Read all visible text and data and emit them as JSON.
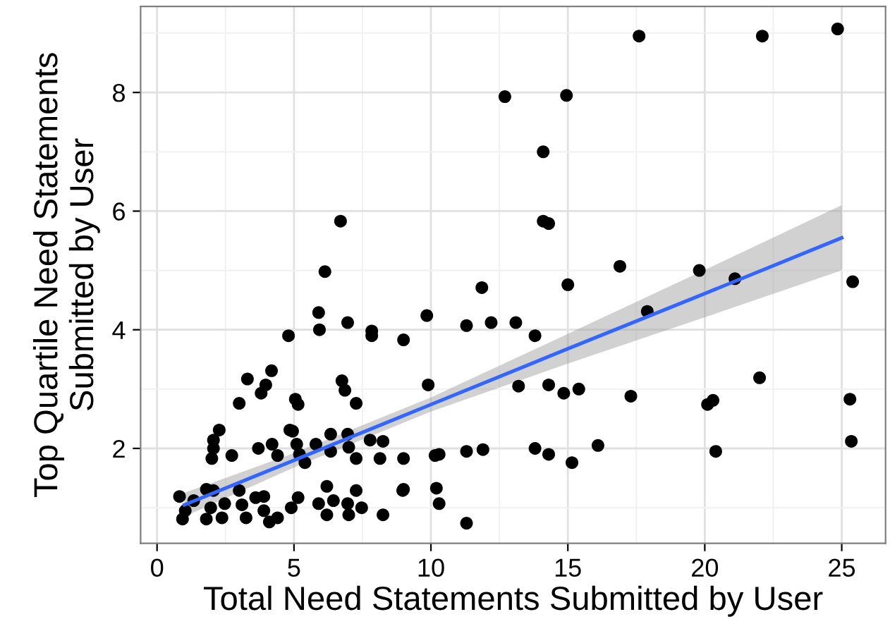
{
  "chart_data": {
    "type": "scatter",
    "xlabel": "Total Need Statements Submitted by User",
    "ylabel": "Top Quartile Need Statements\nSubmitted by User",
    "xlim": [
      -0.6,
      26.6
    ],
    "ylim": [
      0.4,
      9.45
    ],
    "xticks": [
      0,
      5,
      10,
      15,
      20,
      25
    ],
    "yticks": [
      2,
      4,
      6,
      8
    ],
    "grid": true,
    "series": [
      {
        "color": "#000000",
        "marker": "circle",
        "x": [
          6.7,
          12.7,
          14.95,
          14.1,
          14.1,
          17.6,
          22.1,
          24.85,
          14.3,
          16.9,
          19.8,
          21.1,
          25.4,
          17.9,
          11.86,
          15.0,
          9.85,
          9.0,
          11.3,
          12.2,
          13.1,
          13.8,
          9.9,
          13.2,
          14.3,
          14.85,
          15.4,
          17.3,
          22.0,
          20.1,
          20.3,
          25.3,
          25.35,
          9.0,
          10.15,
          10.3,
          11.3,
          11.9,
          13.8,
          14.3,
          15.15,
          16.1,
          20.4,
          8.97,
          10.2,
          10.3,
          11.3,
          6.13,
          5.9,
          5.93,
          4.8,
          6.96,
          7.84,
          7.84,
          4.18,
          3.3,
          3.97,
          3.8,
          6.75,
          6.86,
          3.0,
          5.05,
          5.15,
          7.27,
          2.27,
          2.06,
          2.06,
          2.0,
          2.73,
          3.7,
          4.2,
          4.4,
          4.85,
          4.95,
          5.1,
          5.2,
          5.4,
          5.8,
          6.34,
          6.34,
          6.96,
          7.0,
          7.27,
          7.78,
          8.25,
          8.14,
          0.82,
          1.03,
          0.93,
          1.34,
          1.8,
          2.06,
          1.96,
          1.8,
          2.47,
          2.37,
          3.0,
          3.1,
          3.25,
          3.6,
          3.9,
          3.9,
          4.1,
          4.4,
          4.9,
          5.15,
          5.9,
          6.2,
          6.2,
          6.44,
          6.96,
          7.0,
          7.27,
          7.47,
          8.25,
          9.0
        ],
        "values": [
          5.83,
          7.93,
          7.95,
          7.0,
          5.83,
          8.95,
          8.95,
          9.07,
          5.79,
          5.07,
          5.0,
          4.86,
          4.81,
          4.31,
          4.71,
          4.76,
          4.24,
          3.83,
          4.07,
          4.12,
          4.12,
          3.9,
          3.07,
          3.05,
          3.07,
          2.93,
          3.0,
          2.88,
          3.19,
          2.74,
          2.81,
          2.83,
          2.12,
          1.83,
          1.88,
          1.9,
          1.95,
          1.98,
          2.0,
          1.9,
          1.76,
          2.05,
          1.95,
          1.29,
          1.33,
          1.07,
          0.74,
          4.98,
          4.29,
          4.0,
          3.9,
          4.12,
          3.98,
          3.9,
          3.31,
          3.17,
          3.07,
          2.93,
          3.14,
          2.98,
          2.76,
          2.83,
          2.74,
          2.76,
          2.31,
          2.14,
          2.0,
          1.83,
          1.88,
          2.0,
          2.07,
          1.88,
          2.31,
          2.29,
          2.07,
          1.9,
          1.76,
          2.07,
          2.24,
          1.95,
          2.24,
          2.02,
          1.83,
          2.14,
          2.12,
          1.83,
          1.19,
          0.95,
          0.81,
          1.12,
          1.31,
          1.29,
          1.0,
          0.81,
          1.07,
          0.83,
          1.29,
          1.05,
          0.83,
          1.17,
          1.19,
          0.95,
          0.76,
          0.83,
          1.0,
          1.17,
          1.07,
          1.36,
          0.88,
          1.12,
          1.07,
          0.88,
          1.29,
          1.0,
          0.88,
          1.31
        ]
      },
      {
        "type": "line",
        "color": "#3366ff",
        "x": [
          1,
          5,
          10,
          15,
          20,
          25
        ],
        "values": [
          1.05,
          1.8,
          2.74,
          3.68,
          4.61,
          5.55
        ],
        "lower": [
          0.85,
          1.68,
          2.62,
          3.43,
          4.21,
          5.0
        ],
        "upper": [
          1.25,
          1.92,
          2.86,
          3.93,
          5.01,
          6.1
        ]
      }
    ]
  }
}
